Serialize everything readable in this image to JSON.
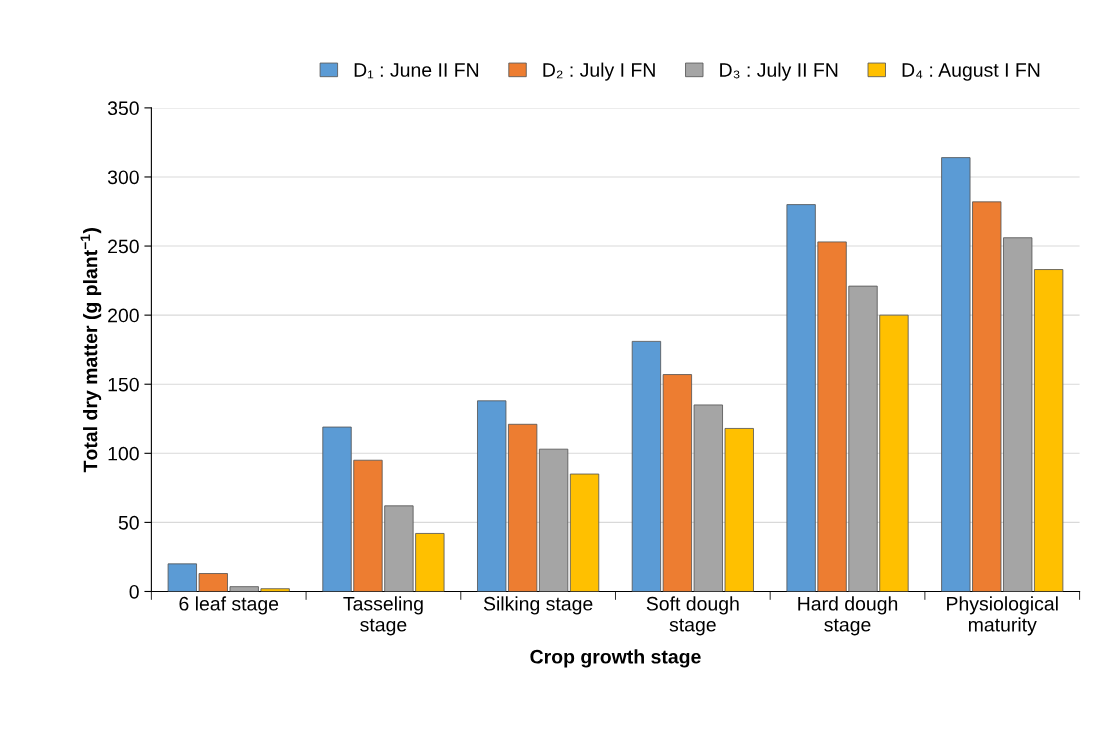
{
  "chart_data": {
    "type": "bar",
    "xlabel": "Crop growth stage",
    "ylabel": "Total dry matter (g plant$^{−1}$)",
    "categories": [
      "6 leaf stage",
      "Tasseling\nstage",
      "Silking stage",
      "Soft dough\nstage",
      "Hard dough\nstage",
      "Physiological\nmaturity"
    ],
    "series": [
      {
        "name": "D₁ : June II FN",
        "color": "#5b9bd5",
        "values": [
          20,
          119,
          138,
          181,
          280,
          314
        ]
      },
      {
        "name": "D₂ : July I FN",
        "color": "#ed7d31",
        "values": [
          13,
          95,
          121,
          157,
          253,
          282
        ]
      },
      {
        "name": "D₃ : July II FN",
        "color": "#a5a5a5",
        "values": [
          3.5,
          62,
          103,
          135,
          221,
          256
        ]
      },
      {
        "name": "D₄ : August I FN",
        "color": "#ffc000",
        "values": [
          2,
          42,
          85,
          118,
          200,
          233
        ]
      }
    ],
    "ylim": [
      0,
      350
    ],
    "yticks": [
      0,
      50,
      100,
      150,
      200,
      250,
      300,
      350
    ],
    "grid": "y",
    "legend": "top"
  }
}
